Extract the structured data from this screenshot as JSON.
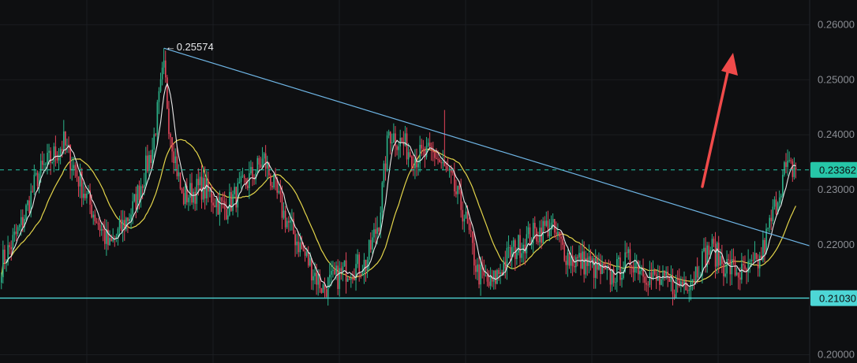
{
  "chart_data": {
    "type": "candlestick",
    "y_axis": {
      "position": "right",
      "ylim": [
        0.1985,
        0.2645
      ],
      "ticks": [
        "0.26000",
        "0.25000",
        "0.24000",
        "0.23000",
        "0.22000",
        "0.20000"
      ],
      "tick_values": [
        0.26,
        0.25,
        0.24,
        0.23,
        0.22,
        0.2
      ]
    },
    "current_price": {
      "label": "0.23362",
      "value": 0.23362,
      "color": "#26c6a8"
    },
    "support_level": {
      "label": "0.21030",
      "value": 0.2103,
      "color": "#4dd6d6"
    },
    "peak": {
      "label": "0.25574",
      "value": 0.25574
    },
    "trendline_color": "#6fb6e6",
    "colors": {
      "up": "#2bb38a",
      "down": "#e2455a",
      "ma_fast": "#e8e8e8",
      "ma_slow": "#e4d54a",
      "arrow": "#f04a4a",
      "grid": "#1b1d21"
    },
    "ohlc_key_points": [
      [
        0,
        0.2165
      ],
      [
        12,
        0.2235
      ],
      [
        22,
        0.2325
      ],
      [
        38,
        0.2385
      ],
      [
        52,
        0.2285
      ],
      [
        66,
        0.2195
      ],
      [
        80,
        0.2265
      ],
      [
        92,
        0.2375
      ],
      [
        99,
        0.2525
      ],
      [
        102,
        0.2425
      ],
      [
        110,
        0.2285
      ],
      [
        122,
        0.2305
      ],
      [
        136,
        0.2265
      ],
      [
        150,
        0.2315
      ],
      [
        160,
        0.2355
      ],
      [
        172,
        0.2255
      ],
      [
        184,
        0.2185
      ],
      [
        196,
        0.212
      ],
      [
        210,
        0.2155
      ],
      [
        222,
        0.2165
      ],
      [
        230,
        0.2245
      ],
      [
        236,
        0.2405
      ],
      [
        244,
        0.2385
      ],
      [
        252,
        0.236
      ],
      [
        264,
        0.2365
      ],
      [
        274,
        0.2315
      ],
      [
        282,
        0.2255
      ],
      [
        290,
        0.215
      ],
      [
        298,
        0.2125
      ],
      [
        310,
        0.2185
      ],
      [
        322,
        0.2215
      ],
      [
        334,
        0.2235
      ],
      [
        346,
        0.2175
      ],
      [
        358,
        0.2165
      ],
      [
        370,
        0.214
      ],
      [
        384,
        0.2175
      ],
      [
        398,
        0.2135
      ],
      [
        410,
        0.2125
      ],
      [
        420,
        0.214
      ],
      [
        432,
        0.2195
      ],
      [
        440,
        0.2165
      ],
      [
        452,
        0.2145
      ],
      [
        462,
        0.217
      ],
      [
        470,
        0.2255
      ],
      [
        477,
        0.2335
      ],
      [
        484,
        0.2338
      ]
    ]
  }
}
